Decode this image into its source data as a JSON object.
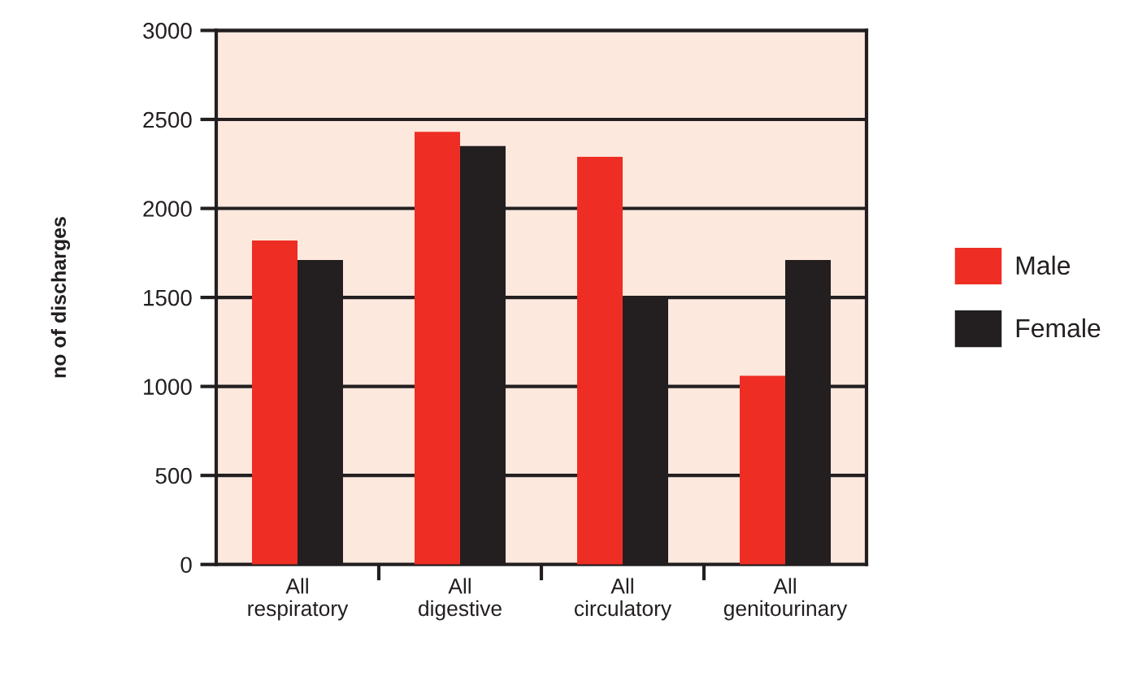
{
  "chart_data": {
    "type": "bar",
    "ylabel": "no of discharges",
    "categories": [
      "All\nrespiratory",
      "All\ndigestive",
      "All\ncirculatory",
      "All\ngenitourinary"
    ],
    "series": [
      {
        "name": "Male",
        "color": "#ee2e24",
        "values": [
          1820,
          2430,
          2290,
          1060
        ]
      },
      {
        "name": "Female",
        "color": "#231f20",
        "values": [
          1710,
          2350,
          1500,
          1710
        ]
      }
    ],
    "ylim": [
      0,
      3000
    ],
    "yticks": [
      0,
      500,
      1000,
      1500,
      2000,
      2500,
      3000
    ],
    "grid": "y",
    "legend": "right"
  }
}
